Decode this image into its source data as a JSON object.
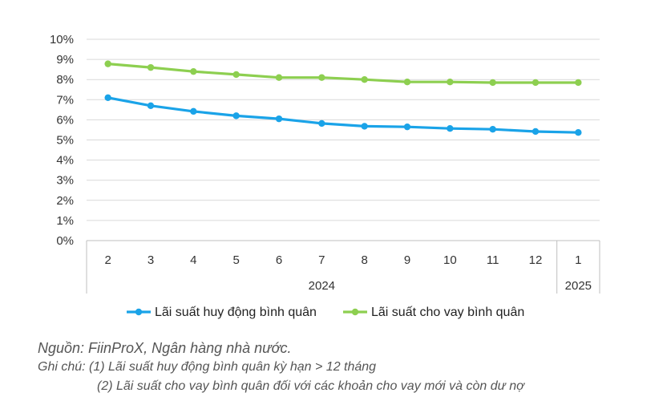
{
  "chart_data": {
    "type": "line",
    "categories": [
      "2",
      "3",
      "4",
      "5",
      "6",
      "7",
      "8",
      "9",
      "10",
      "11",
      "12",
      "1"
    ],
    "groups": [
      {
        "label": "2024",
        "count": 11
      },
      {
        "label": "2025",
        "count": 1
      }
    ],
    "series": [
      {
        "name": "Lãi suất huy động bình quân",
        "color": "#1aa3e8",
        "values": [
          7.1,
          6.7,
          6.42,
          6.2,
          6.05,
          5.82,
          5.68,
          5.65,
          5.57,
          5.53,
          5.42,
          5.37
        ]
      },
      {
        "name": "Lãi suất cho vay bình quân",
        "color": "#8dcf50",
        "values": [
          8.78,
          8.6,
          8.4,
          8.25,
          8.1,
          8.1,
          8.0,
          7.88,
          7.88,
          7.85,
          7.85,
          7.85
        ]
      }
    ],
    "yticks": [
      "0%",
      "1%",
      "2%",
      "3%",
      "4%",
      "5%",
      "6%",
      "7%",
      "8%",
      "9%",
      "10%"
    ],
    "ylim": [
      0,
      10
    ],
    "grid": true,
    "legend": "bottom"
  },
  "notes": {
    "source": "Nguồn: FiinProX, Ngân hàng nhà nước.",
    "note_1": "Ghi chú: (1) Lãi suất huy động bình quân kỳ hạn > 12 tháng",
    "note_2": "(2) Lãi suất cho vay bình quân đối với các khoản cho vay mới và còn dư nợ"
  }
}
